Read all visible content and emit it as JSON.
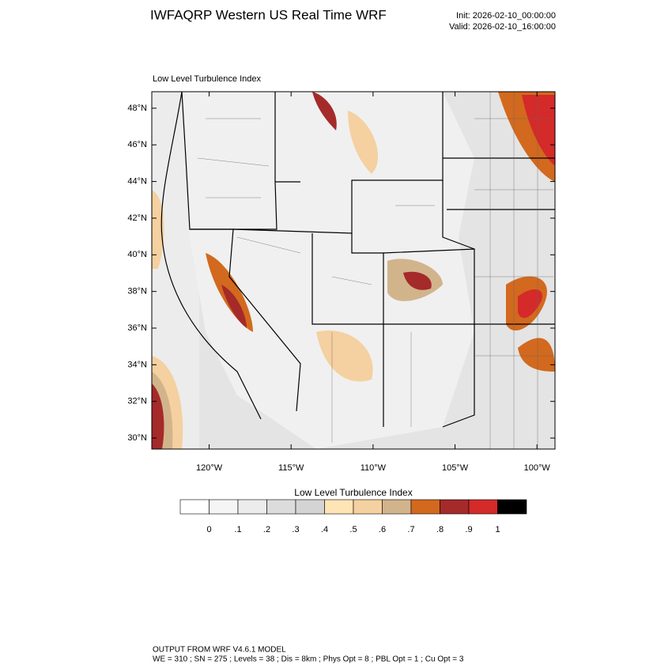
{
  "header": {
    "title": "IWFAQRP Western US Real Time WRF",
    "init": "Init: 2026-02-10_00:00:00",
    "valid": "Valid: 2026-02-10_16:00:00"
  },
  "map": {
    "title": "Low Level Turbulence Index",
    "lonlim": [
      -123.5,
      -98.9
    ],
    "latlim": [
      29.4,
      48.9
    ],
    "latticks": [
      {
        "value": 30,
        "label": "30°N"
      },
      {
        "value": 32,
        "label": "32°N"
      },
      {
        "value": 34,
        "label": "34°N"
      },
      {
        "value": 36,
        "label": "36°N"
      },
      {
        "value": 38,
        "label": "38°N"
      },
      {
        "value": 40,
        "label": "40°N"
      },
      {
        "value": 42,
        "label": "42°N"
      },
      {
        "value": 44,
        "label": "44°N"
      },
      {
        "value": 46,
        "label": "46°N"
      },
      {
        "value": 48,
        "label": "48°N"
      }
    ],
    "lonticks": [
      {
        "value": -120,
        "label": "120°W"
      },
      {
        "value": -115,
        "label": "115°W"
      },
      {
        "value": -110,
        "label": "110°W"
      },
      {
        "value": -105,
        "label": "105°W"
      },
      {
        "value": -100,
        "label": "100°W"
      }
    ]
  },
  "colorbar": {
    "title": "Low Level Turbulence Index",
    "colors": [
      "#ffffff",
      "#f5f5f5",
      "#ececec",
      "#dcdcdc",
      "#d4d4d4",
      "#ffe4b5",
      "#f5d0a0",
      "#d2b48c",
      "#d2691e",
      "#a52a2a",
      "#d42a2a",
      "#000000"
    ],
    "ticks": [
      0,
      {
        "value": 0.1,
        "label": ".1"
      },
      {
        "value": 0.2,
        "label": ".2"
      },
      {
        "value": 0.3,
        "label": ".3"
      },
      {
        "value": 0.4,
        "label": ".4"
      },
      {
        "value": 0.5,
        "label": ".5"
      },
      {
        "value": 0.6,
        "label": ".6"
      },
      {
        "value": 0.7,
        "label": ".7"
      },
      {
        "value": 0.8,
        "label": ".8"
      },
      {
        "value": 0.9,
        "label": ".9"
      },
      1
    ]
  },
  "footer": {
    "line1": "OUTPUT FROM WRF V4.6.1 MODEL",
    "line2": "WE = 310 ; SN = 275 ; Levels = 38 ; Dis = 8km ; Phys Opt = 8 ; PBL Opt = 1 ; Cu Opt = 3"
  }
}
